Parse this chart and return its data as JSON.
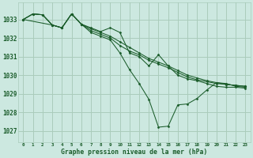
{
  "title": "Graphe pression niveau de la mer (hPa)",
  "background_color": "#cce8e0",
  "grid_color": "#aaccbb",
  "line_color": "#1a5c2a",
  "xlim": [
    -0.5,
    23.5
  ],
  "ylim": [
    1026.4,
    1033.9
  ],
  "yticks": [
    1027,
    1028,
    1029,
    1030,
    1031,
    1032,
    1033
  ],
  "xticks": [
    0,
    1,
    2,
    3,
    4,
    5,
    6,
    7,
    8,
    9,
    10,
    11,
    12,
    13,
    14,
    15,
    16,
    17,
    18,
    19,
    20,
    21,
    22,
    23
  ],
  "series": [
    {
      "x": [
        0,
        1,
        2,
        3,
        4,
        5,
        6,
        7,
        8,
        9,
        10,
        11,
        12,
        13,
        14,
        15,
        16,
        17,
        18,
        19,
        20,
        21,
        22,
        23
      ],
      "y": [
        1033.0,
        1033.3,
        1033.25,
        1032.7,
        1032.55,
        1033.3,
        1032.75,
        1032.3,
        1032.1,
        1031.9,
        1031.2,
        1030.3,
        1029.55,
        1028.7,
        1027.2,
        1027.25,
        1028.4,
        1028.45,
        1028.75,
        1029.2,
        1029.6,
        1029.55,
        1029.4,
        1029.35
      ]
    },
    {
      "x": [
        0,
        1,
        2,
        3,
        4,
        5,
        6,
        7,
        8,
        9,
        10,
        11,
        12,
        13,
        14,
        15,
        16,
        17,
        18,
        19,
        20,
        21,
        22,
        23
      ],
      "y": [
        1033.0,
        1033.3,
        1033.25,
        1032.7,
        1032.55,
        1033.3,
        1032.75,
        1032.55,
        1032.35,
        1032.55,
        1032.3,
        1031.2,
        1031.0,
        1030.5,
        1031.1,
        1030.5,
        1030.0,
        1029.8,
        1029.7,
        1029.55,
        1029.4,
        1029.35,
        1029.35,
        1029.3
      ]
    },
    {
      "x": [
        0,
        1,
        2,
        3,
        4,
        5,
        6,
        7,
        8,
        9,
        10,
        11,
        12,
        13,
        14,
        15,
        16,
        17,
        18,
        19,
        20,
        21,
        22,
        23
      ],
      "y": [
        1033.0,
        1033.3,
        1033.25,
        1032.7,
        1032.55,
        1033.3,
        1032.75,
        1032.5,
        1032.3,
        1032.1,
        1031.8,
        1031.5,
        1031.2,
        1030.9,
        1030.7,
        1030.5,
        1030.25,
        1030.0,
        1029.85,
        1029.7,
        1029.6,
        1029.5,
        1029.45,
        1029.4
      ]
    },
    {
      "x": [
        0,
        3,
        4,
        5,
        6,
        7,
        8,
        9,
        10,
        11,
        12,
        13,
        14,
        15,
        16,
        17,
        18,
        19,
        20,
        21,
        22,
        23
      ],
      "y": [
        1033.0,
        1032.7,
        1032.55,
        1033.3,
        1032.75,
        1032.4,
        1032.2,
        1032.0,
        1031.6,
        1031.3,
        1031.1,
        1030.8,
        1030.6,
        1030.4,
        1030.15,
        1029.9,
        1029.75,
        1029.65,
        1029.55,
        1029.5,
        1029.45,
        1029.4
      ]
    }
  ]
}
